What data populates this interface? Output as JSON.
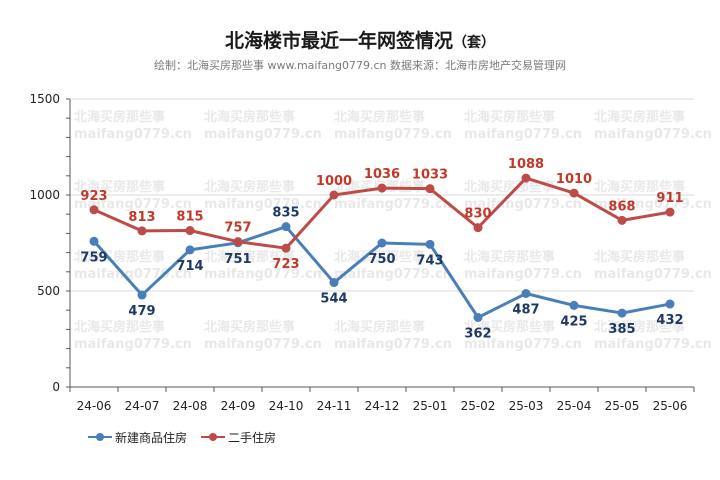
{
  "header": {
    "title": "北海楼市最近一年网签情况",
    "title_unit": "（套）",
    "subtitle": "绘制：北海买房那些事 www.maifang0779.cn  数据来源：北海市房地产交易管理网"
  },
  "watermark": {
    "line1": "北海买房那些事",
    "line2": "maifang0779.cn"
  },
  "colors": {
    "new_homes": "#4a7ebb",
    "new_homes_label": "#1f3864",
    "resale": "#be4b48",
    "resale_label": "#c0392b",
    "grid": "#d9d9d9",
    "axis": "#595959"
  },
  "chart_data": {
    "type": "line",
    "categories": [
      "24-06",
      "24-07",
      "24-08",
      "24-09",
      "24-10",
      "24-11",
      "24-12",
      "25-01",
      "25-02",
      "25-03",
      "25-04",
      "25-05",
      "25-06"
    ],
    "ylim": [
      0,
      1500
    ],
    "yticks": [
      0,
      500,
      1000,
      1500
    ],
    "grid": true,
    "legend": "bottom-left",
    "series": [
      {
        "name": "新建商品住房",
        "color_key": "new_homes",
        "values": [
          759,
          479,
          714,
          751,
          835,
          544,
          750,
          743,
          362,
          487,
          425,
          385,
          432
        ]
      },
      {
        "name": "二手住房",
        "color_key": "resale",
        "values": [
          923,
          813,
          815,
          757,
          723,
          1000,
          1036,
          1033,
          830,
          1088,
          1010,
          868,
          911
        ]
      }
    ]
  }
}
